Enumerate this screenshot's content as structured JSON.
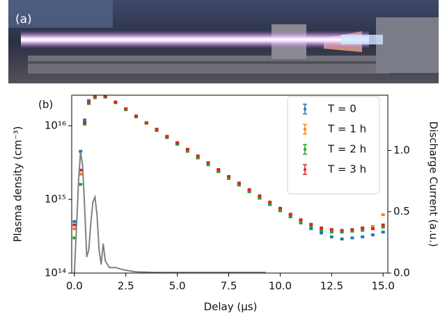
{
  "panel_a_label": "(a)",
  "chart_data": {
    "type": "scatter",
    "panel_label": "(b)",
    "x_label": "Delay (μs)",
    "y_label": "Plasma density (cm⁻³)",
    "y2_label": "Discharge Current (a.u.)",
    "xlim": [
      -0.13,
      15.23
    ],
    "xticks": [
      {
        "value": 0,
        "label": "0.0"
      },
      {
        "value": 2.5,
        "label": "2.5"
      },
      {
        "value": 5,
        "label": "5.0"
      },
      {
        "value": 7.5,
        "label": "7.5"
      },
      {
        "value": 10,
        "label": "10.0"
      },
      {
        "value": 12.5,
        "label": "12.5"
      },
      {
        "value": 15,
        "label": "15.0"
      }
    ],
    "ylim": [
      100000000000000.0,
      2.6e+16
    ],
    "yscale": "log",
    "yticks": [
      {
        "value": 100000000000000.0,
        "label": "10¹⁴"
      },
      {
        "value": 1000000000000000.0,
        "label": "10¹⁵"
      },
      {
        "value": 1e+16,
        "label": "10¹⁶"
      }
    ],
    "y2lim": [
      0,
      1.45
    ],
    "y2ticks": [
      {
        "value": 0,
        "label": "0.0"
      },
      {
        "value": 0.5,
        "label": "0.5"
      },
      {
        "value": 1,
        "label": "1.0"
      }
    ],
    "legend": "upper right",
    "x": [
      0,
      0.3,
      0.5,
      0.7,
      1,
      1.5,
      2,
      2.5,
      3,
      3.5,
      4,
      4.5,
      5,
      5.5,
      6,
      6.5,
      7,
      7.5,
      8,
      8.5,
      9,
      9.5,
      10,
      10.5,
      11,
      11.5,
      12,
      12.5,
      13,
      13.5,
      14,
      14.5,
      15
    ],
    "series": [
      {
        "name": "T = 0",
        "color": "#1f77b4",
        "values": [
          500000000000000.0,
          4500000000000000.0,
          1.2e+16,
          2.2e+16,
          2.5e+16,
          2.5e+16,
          2.1e+16,
          1.7e+16,
          1.35e+16,
          1.1e+16,
          8800000000000000.0,
          7000000000000000.0,
          5700000000000000.0,
          4600000000000000.0,
          3700000000000000.0,
          3000000000000000.0,
          2400000000000000.0,
          1950000000000000.0,
          1580000000000000.0,
          1280000000000000.0,
          1040000000000000.0,
          850000000000000.0,
          700000000000000.0,
          580000000000000.0,
          480000000000000.0,
          400000000000000.0,
          350000000000000.0,
          310000000000000.0,
          290000000000000.0,
          300000000000000.0,
          310000000000000.0,
          330000000000000.0,
          360000000000000.0
        ]
      },
      {
        "name": "T = 1 h",
        "color": "#ff7f0e",
        "values": [
          400000000000000.0,
          2200000000000000.0,
          1.1e+16,
          2.1e+16,
          2.5e+16,
          2.5e+16,
          2.1e+16,
          1.7e+16,
          1.35e+16,
          1.1e+16,
          8900000000000000.0,
          7100000000000000.0,
          5800000000000000.0,
          4700000000000000.0,
          3800000000000000.0,
          3100000000000000.0,
          2500000000000000.0,
          2000000000000000.0,
          1630000000000000.0,
          1330000000000000.0,
          1080000000000000.0,
          890000000000000.0,
          740000000000000.0,
          620000000000000.0,
          520000000000000.0,
          450000000000000.0,
          400000000000000.0,
          380000000000000.0,
          370000000000000.0,
          380000000000000.0,
          400000000000000.0,
          430000000000000.0,
          620000000000000.0
        ]
      },
      {
        "name": "T = 2 h",
        "color": "#2ca02c",
        "values": [
          300000000000000.0,
          1600000000000000.0,
          1.05e+16,
          2e+16,
          2.4e+16,
          2.45e+16,
          2.05e+16,
          1.65e+16,
          1.32e+16,
          1.08e+16,
          8600000000000000.0,
          6900000000000000.0,
          5600000000000000.0,
          4500000000000000.0,
          3650000000000000.0,
          2950000000000000.0,
          2380000000000000.0,
          1920000000000000.0,
          1560000000000000.0,
          1270000000000000.0,
          1040000000000000.0,
          860000000000000.0,
          710000000000000.0,
          590000000000000.0,
          500000000000000.0,
          430000000000000.0,
          380000000000000.0,
          360000000000000.0,
          360000000000000.0,
          370000000000000.0,
          380000000000000.0,
          400000000000000.0,
          420000000000000.0
        ]
      },
      {
        "name": "T = 3 h",
        "color": "#d62728",
        "values": [
          450000000000000.0,
          2500000000000000.0,
          1.1e+16,
          2.1e+16,
          2.5e+16,
          2.5e+16,
          2.1e+16,
          1.7e+16,
          1.36e+16,
          1.1e+16,
          9000000000000000.0,
          7200000000000000.0,
          5900000000000000.0,
          4800000000000000.0,
          3900000000000000.0,
          3150000000000000.0,
          2550000000000000.0,
          2050000000000000.0,
          1670000000000000.0,
          1360000000000000.0,
          1120000000000000.0,
          920000000000000.0,
          760000000000000.0,
          630000000000000.0,
          530000000000000.0,
          460000000000000.0,
          410000000000000.0,
          390000000000000.0,
          380000000000000.0,
          390000000000000.0,
          410000000000000.0,
          400000000000000.0,
          450000000000000.0
        ]
      },
      {
        "type": "line",
        "axis": "y2",
        "color": "#808080",
        "x": [
          0,
          0.1,
          0.2,
          0.3,
          0.4,
          0.5,
          0.6,
          0.7,
          0.8,
          0.9,
          1.0,
          1.1,
          1.2,
          1.3,
          1.4,
          1.5,
          1.7,
          2.0,
          2.3,
          2.6,
          3,
          4,
          5,
          6,
          7,
          8,
          9,
          9.3
        ],
        "values": [
          0,
          0.36,
          0.75,
          0.99,
          0.87,
          0.53,
          0.13,
          0.19,
          0.41,
          0.58,
          0.62,
          0.47,
          0.19,
          0.07,
          0.24,
          0.1,
          0.045,
          0.045,
          0.03,
          0.02,
          0.01,
          0.005,
          0.005,
          0.005,
          0.005,
          0.005,
          0.005,
          0.005
        ]
      }
    ]
  }
}
